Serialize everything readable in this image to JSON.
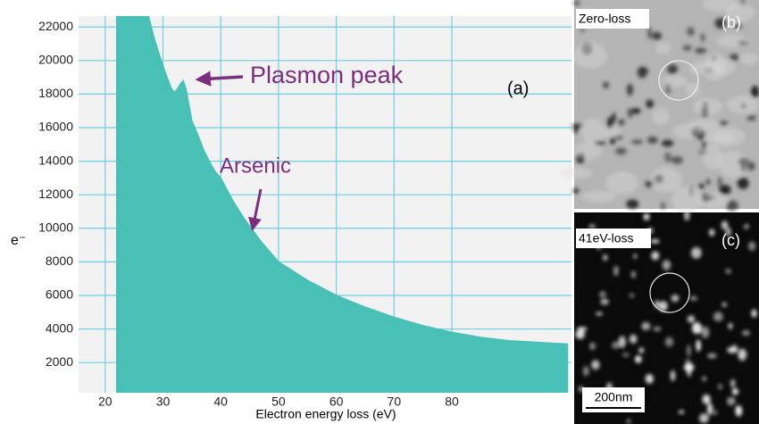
{
  "chart_data": {
    "type": "area",
    "xlabel": "Electron energy loss (eV)",
    "ylabel": "e⁻",
    "annotations": [
      "Plasmon peak",
      "Arsenic",
      "(a)"
    ],
    "x": [
      22,
      24,
      26,
      27.5,
      28.5,
      29.5,
      30.5,
      31.5,
      32,
      32.5,
      33,
      33.5,
      34,
      35,
      36,
      37,
      38,
      39,
      40,
      42,
      44,
      45.5,
      47,
      50,
      55,
      60,
      65,
      70,
      75,
      80,
      85,
      90,
      95,
      100
    ],
    "series": [
      {
        "color": "#48c0b6",
        "values": [
          22650,
          22650,
          22650,
          22650,
          21300,
          20200,
          19200,
          18300,
          18100,
          18300,
          18600,
          18800,
          18300,
          16400,
          15600,
          14700,
          14000,
          13400,
          13000,
          11700,
          10600,
          9900,
          9200,
          8000,
          6900,
          6000,
          5300,
          4700,
          4200,
          3800,
          3500,
          3300,
          3200,
          3100
        ]
      }
    ],
    "xlim": [
      15.4,
      100.7
    ],
    "xticks": [
      20,
      30,
      40,
      50,
      60,
      70,
      80
    ],
    "ylim": [
      200,
      22650
    ],
    "yticks": [
      2000,
      4000,
      6000,
      8000,
      10000,
      12000,
      14000,
      16000,
      18000,
      20000,
      22000
    ],
    "grid": true
  },
  "panels": [
    {
      "label": "Zero-loss",
      "tag": "(b)"
    },
    {
      "label": "41eV-loss",
      "tag": "(c)",
      "scale_bar": "200nm"
    }
  ]
}
